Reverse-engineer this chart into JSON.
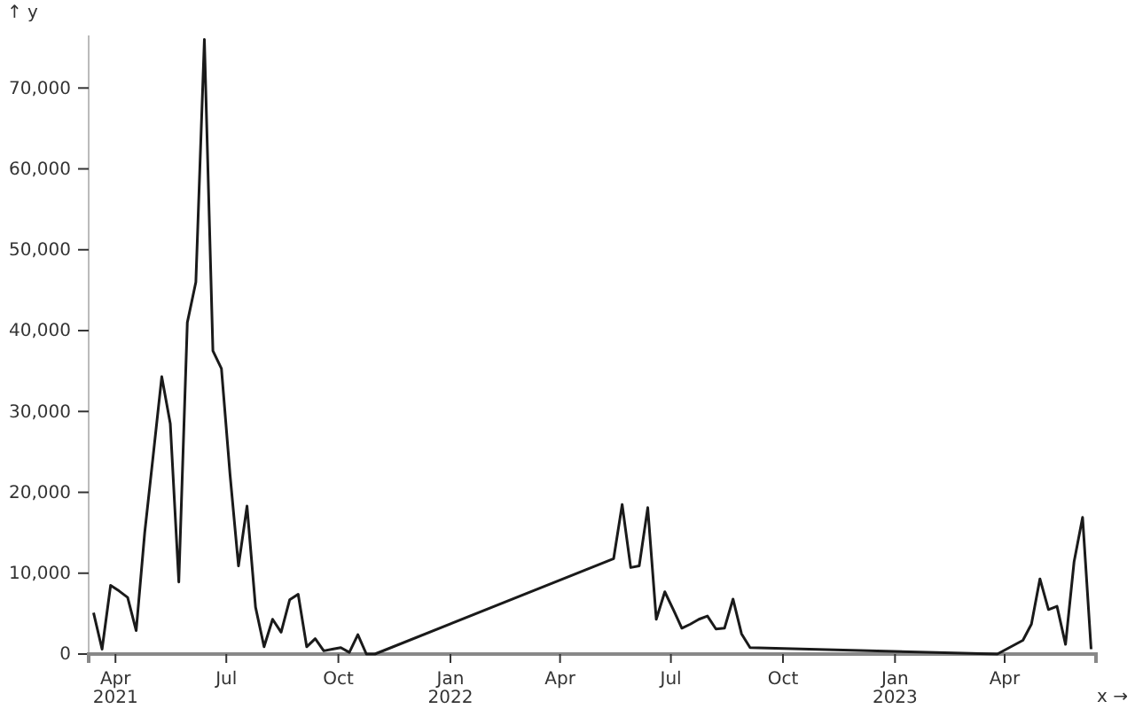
{
  "chart_data": {
    "type": "line",
    "xlabel": "x →",
    "ylabel": "↑ y",
    "x": [
      "2021-03-14",
      "2021-03-21",
      "2021-03-28",
      "2021-04-04",
      "2021-04-11",
      "2021-04-18",
      "2021-04-25",
      "2021-05-02",
      "2021-05-09",
      "2021-05-16",
      "2021-05-23",
      "2021-05-30",
      "2021-06-06",
      "2021-06-13",
      "2021-06-20",
      "2021-06-27",
      "2021-07-04",
      "2021-07-11",
      "2021-07-18",
      "2021-07-25",
      "2021-08-01",
      "2021-08-08",
      "2021-08-15",
      "2021-08-22",
      "2021-08-29",
      "2021-09-05",
      "2021-09-12",
      "2021-09-19",
      "2021-09-26",
      "2021-10-03",
      "2021-10-10",
      "2021-10-17",
      "2021-10-24",
      "2021-10-31",
      "2022-05-15",
      "2022-05-22",
      "2022-05-29",
      "2022-06-05",
      "2022-06-12",
      "2022-06-19",
      "2022-06-26",
      "2022-07-03",
      "2022-07-10",
      "2022-07-17",
      "2022-07-24",
      "2022-07-31",
      "2022-08-07",
      "2022-08-14",
      "2022-08-21",
      "2022-08-28",
      "2022-09-04",
      "2023-03-26",
      "2023-04-16",
      "2023-04-23",
      "2023-04-30",
      "2023-05-07",
      "2023-05-14",
      "2023-05-21",
      "2023-05-28",
      "2023-06-04",
      "2023-06-11"
    ],
    "series": [
      {
        "color": "#1a1a1a",
        "values": [
          5100,
          600,
          8500,
          7800,
          7000,
          2900,
          15000,
          24600,
          34300,
          28500,
          8900,
          41000,
          46000,
          76000,
          37500,
          35300,
          22300,
          10900,
          18300,
          5800,
          900,
          4300,
          2700,
          6700,
          7400,
          900,
          1900,
          400,
          600,
          800,
          200,
          2400,
          0,
          0,
          11800,
          18500,
          10700,
          10900,
          18100,
          4300,
          7700,
          5500,
          3200,
          3700,
          4300,
          4700,
          3100,
          3200,
          6800,
          2500,
          800,
          0,
          1700,
          3700,
          9300,
          5500,
          5900,
          1200,
          11400,
          16900,
          600
        ]
      }
    ],
    "xlim": [
      "2021-03-10",
      "2023-06-15"
    ],
    "xticks": [
      {
        "value": "2021-04-01",
        "label": "Apr\n2021"
      },
      {
        "value": "2021-07-01",
        "label": "Jul"
      },
      {
        "value": "2021-10-01",
        "label": "Oct"
      },
      {
        "value": "2022-01-01",
        "label": "Jan\n2022"
      },
      {
        "value": "2022-04-01",
        "label": "Apr"
      },
      {
        "value": "2022-07-01",
        "label": "Jul"
      },
      {
        "value": "2022-10-01",
        "label": "Oct"
      },
      {
        "value": "2023-01-01",
        "label": "Jan\n2023"
      },
      {
        "value": "2023-04-01",
        "label": "Apr"
      }
    ],
    "ylim": [
      0,
      76500
    ],
    "yticks": [
      0,
      {
        "value": 10000,
        "label": "10,000"
      },
      {
        "value": 20000,
        "label": "20,000"
      },
      {
        "value": 30000,
        "label": "30,000"
      },
      {
        "value": 40000,
        "label": "40,000"
      },
      {
        "value": 50000,
        "label": "50,000"
      },
      {
        "value": 60000,
        "label": "60,000"
      },
      {
        "value": 70000,
        "label": "70,000"
      }
    ],
    "grid": false,
    "marker": "none",
    "line_style": "solid"
  }
}
